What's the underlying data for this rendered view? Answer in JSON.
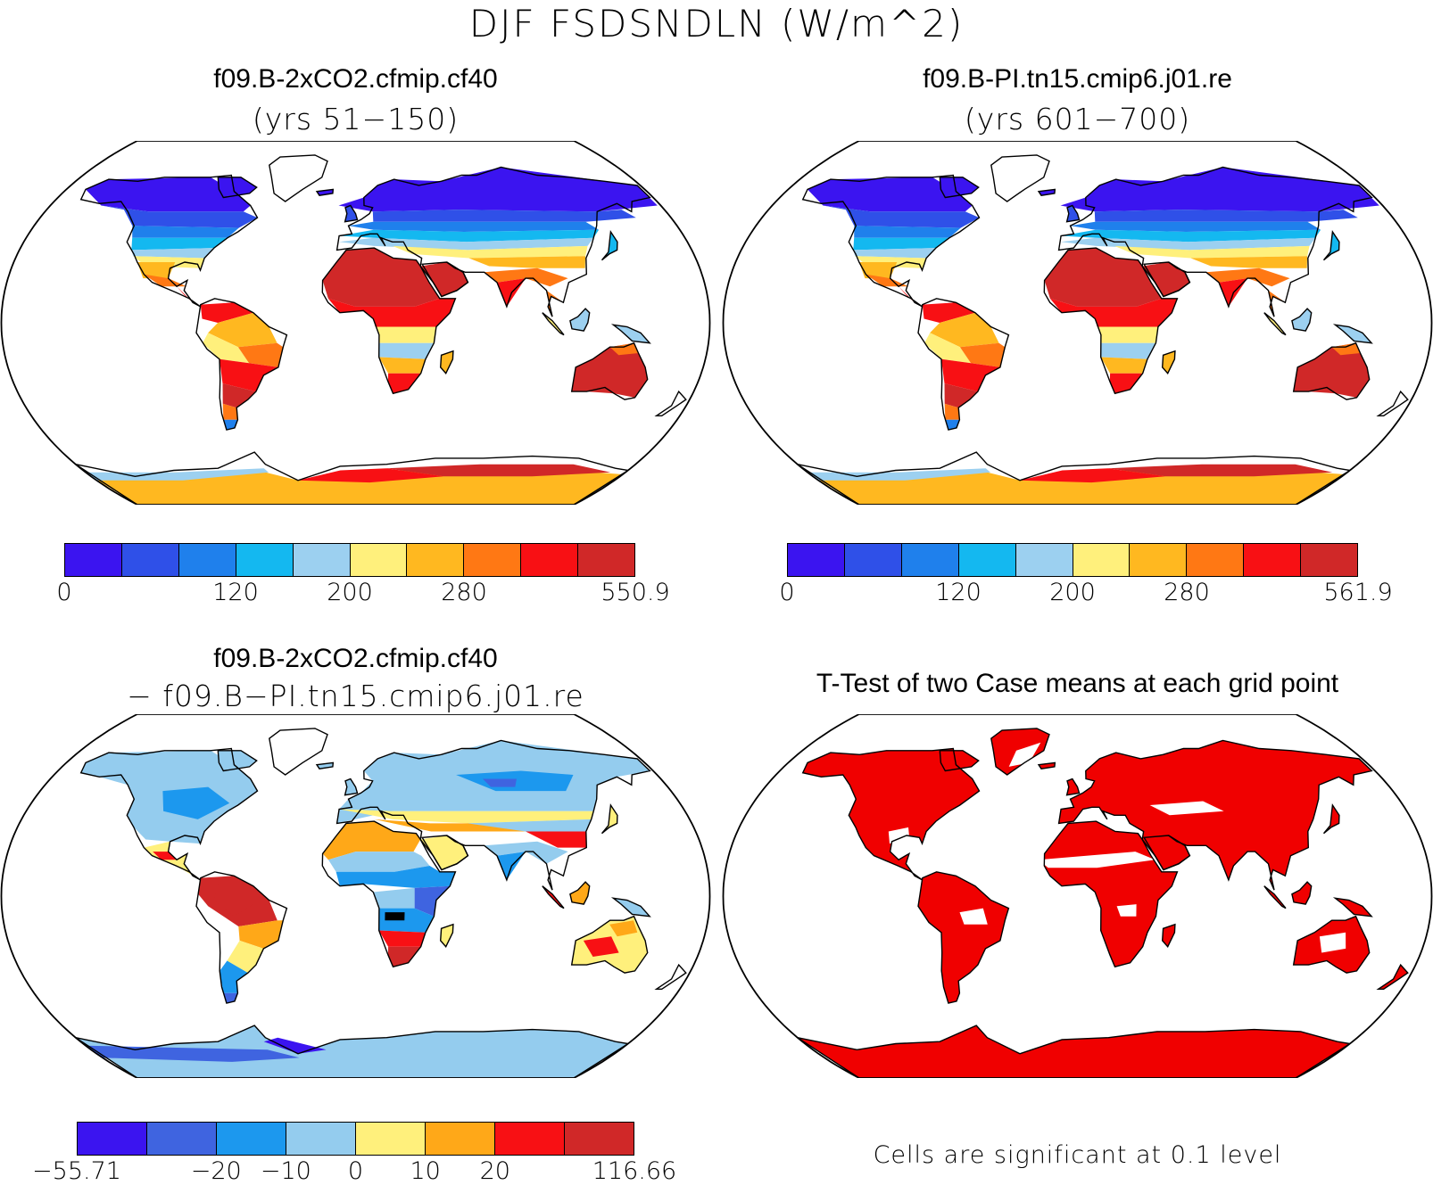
{
  "main_title": "DJF FSDSNDLN (W/m^2)",
  "panels": [
    {
      "title": "f09.B-2xCO2.cfmip.cf40",
      "subtitle": "(yrs 51−150)",
      "colorbar": {
        "colors": [
          "#3b14f0",
          "#2f50e8",
          "#1f80ec",
          "#14b8f0",
          "#9cd0f0",
          "#fff07c",
          "#ffb820",
          "#ff7814",
          "#f81014",
          "#d02828"
        ],
        "ticks": [
          "0",
          "120",
          "200",
          "280",
          "550.9"
        ],
        "tick_positions": [
          0,
          3,
          5,
          7,
          10
        ]
      }
    },
    {
      "title": "f09.B-PI.tn15.cmip6.j01.re",
      "subtitle": "(yrs 601−700)",
      "colorbar": {
        "colors": [
          "#3b14f0",
          "#2f50e8",
          "#1f80ec",
          "#14b8f0",
          "#9cd0f0",
          "#fff07c",
          "#ffb820",
          "#ff7814",
          "#f81014",
          "#d02828"
        ],
        "ticks": [
          "0",
          "120",
          "200",
          "280",
          "561.9"
        ],
        "tick_positions": [
          0,
          3,
          5,
          7,
          10
        ]
      }
    },
    {
      "title": "f09.B-2xCO2.cfmip.cf40",
      "subtitle": "− f09.B−PI.tn15.cmip6.j01.re",
      "colorbar": {
        "colors": [
          "#3b14f0",
          "#3f64e0",
          "#1c98ee",
          "#94ccee",
          "#fff07c",
          "#ffa818",
          "#f81014",
          "#d02828"
        ],
        "ticks": [
          "−55.71",
          "−20",
          "−10",
          "0",
          "10",
          "20",
          "116.66"
        ],
        "tick_positions": [
          0,
          2,
          3,
          4,
          5,
          6,
          8
        ]
      }
    }
  ],
  "ttest": {
    "title": "T-Test of two Case means at each grid point",
    "note": "Cells are significant at 0.1 level",
    "sig_color": "#f00000"
  }
}
